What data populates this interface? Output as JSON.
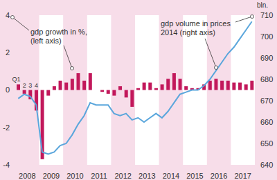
{
  "chart_data": {
    "type": "bar",
    "categories": [
      "2008",
      null,
      null,
      null,
      "2009",
      null,
      null,
      null,
      "2010",
      null,
      null,
      null,
      "2011",
      null,
      null,
      null,
      "2012",
      null,
      null,
      null,
      "2013",
      null,
      null,
      null,
      "2014",
      null,
      null,
      null,
      "2015",
      null,
      null,
      null,
      "2016",
      null,
      null,
      null,
      "2017",
      null,
      null,
      null
    ],
    "quarter_labels": [
      "Q1",
      "2",
      "3",
      "4"
    ],
    "series": [
      {
        "name": "gdp growth in %",
        "type": "bar",
        "color": "#c2185b",
        "values": [
          0.3,
          -0.2,
          -0.5,
          -1.1,
          -3.7,
          -0.3,
          0.2,
          0.5,
          0.4,
          0.6,
          0.9,
          0.5,
          0.9,
          0.0,
          -0.1,
          -0.2,
          -0.3,
          0.2,
          -0.4,
          -0.9,
          0.1,
          0.4,
          0.4,
          0.1,
          0.3,
          0.6,
          0.9,
          0.6,
          0.2,
          0.1,
          0.1,
          0.3,
          0.5,
          0.6,
          0.5,
          0.5,
          0.4,
          0.4,
          0.3,
          0.5
        ]
      },
      {
        "name": "gdp volume in prices 2014",
        "type": "line",
        "axis": "y2",
        "color": "#5aa6dc",
        "values": [
          671,
          673,
          672,
          668,
          646,
          645,
          646,
          649,
          650,
          654,
          659,
          663,
          669,
          668,
          668,
          668,
          664,
          663,
          664,
          661,
          662,
          660,
          662,
          664,
          662,
          665,
          669,
          673,
          674,
          675,
          675,
          677,
          680,
          684,
          688,
          692,
          695,
          699,
          703,
          707
        ]
      }
    ],
    "ylim": [
      -4,
      4
    ],
    "yticks": [
      -4,
      -2,
      0,
      2,
      4
    ],
    "y2lim": [
      640,
      710
    ],
    "y2ticks": [
      640,
      650,
      660,
      670,
      680,
      690,
      700,
      710
    ],
    "y2label": "bln.",
    "annotations": [
      [
        "gdp growth in %,",
        "(left axis)"
      ],
      [
        "gdp volume in prices",
        "2014 (right axis)"
      ]
    ],
    "grid": false
  }
}
